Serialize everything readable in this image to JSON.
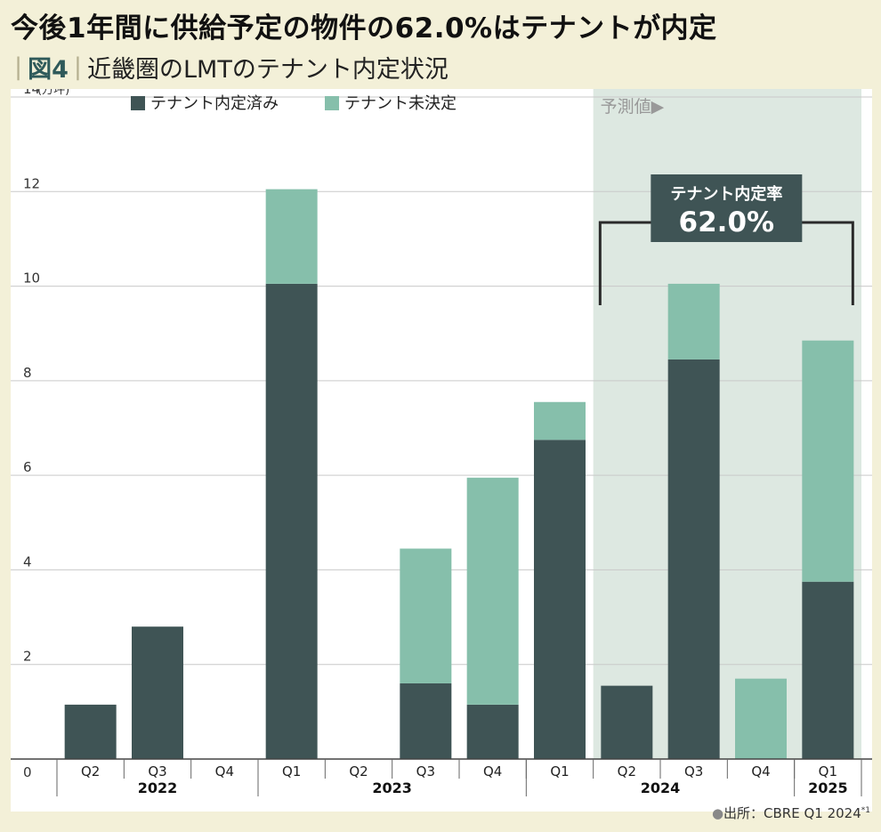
{
  "title": "今後1年間に供給予定の物件の62.0%はテナントが内定",
  "subtitle": {
    "fig_label": "図4",
    "text": "近畿圏のLMTのテナント内定状況"
  },
  "source": {
    "text": "出所：CBRE Q1 2024",
    "note_mark": "*1"
  },
  "colors": {
    "committed": "#3f5455",
    "uncommitted": "#86bfab",
    "forecast_bg": "#dde8e1",
    "callout_bg": "#3f5455"
  },
  "chart_data": {
    "type": "bar",
    "stacked": true,
    "ylabel": "(万坪)",
    "ylim": [
      0,
      14
    ],
    "yticks": [
      0,
      2,
      4,
      6,
      8,
      10,
      12,
      14
    ],
    "grid": true,
    "legend_position": "top-left",
    "categories": [
      "Q2",
      "Q3",
      "Q4",
      "Q1",
      "Q2",
      "Q3",
      "Q4",
      "Q1",
      "Q2",
      "Q3",
      "Q4",
      "Q1"
    ],
    "year_groups": [
      {
        "label": "2022",
        "start": 0,
        "end": 2
      },
      {
        "label": "2023",
        "start": 3,
        "end": 6
      },
      {
        "label": "2024",
        "start": 7,
        "end": 10
      },
      {
        "label": "2025",
        "start": 11,
        "end": 11
      }
    ],
    "series": [
      {
        "name": "テナント内定済み",
        "values": [
          1.15,
          2.8,
          0,
          10.05,
          0,
          1.6,
          1.15,
          6.75,
          1.55,
          8.45,
          0,
          3.75
        ]
      },
      {
        "name": "テナント未決定",
        "values": [
          0,
          0,
          0,
          2.0,
          0,
          2.85,
          4.8,
          0.8,
          0,
          1.6,
          1.7,
          5.1
        ]
      }
    ],
    "forecast": {
      "label": "予測値▶",
      "start_index": 8
    },
    "annotation": {
      "label": "テナント内定率",
      "value": "62.0%",
      "span_start": 8,
      "span_end": 11
    }
  }
}
